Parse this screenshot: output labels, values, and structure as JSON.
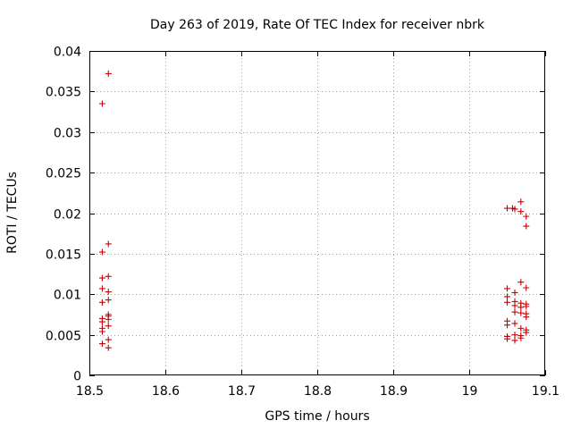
{
  "chart_data": {
    "type": "scatter",
    "title": "Day 263 of 2019, Rate Of TEC Index for receiver nbrk",
    "xlabel": "GPS time / hours",
    "ylabel": "ROTI / TECUs",
    "xlim": [
      18.5,
      19.1
    ],
    "ylim": [
      0,
      0.04
    ],
    "grid": true,
    "x_ticks": [
      18.5,
      18.6,
      18.7,
      18.8,
      18.9,
      19.0,
      19.1
    ],
    "x_tick_labels": [
      "18.5",
      "18.6",
      "18.7",
      "18.8",
      "18.9",
      "19",
      "19.1"
    ],
    "y_ticks": [
      0,
      0.005,
      0.01,
      0.015,
      0.02,
      0.025,
      0.03,
      0.035,
      0.04
    ],
    "y_tick_labels": [
      "0",
      "0.005",
      "0.01",
      "0.015",
      "0.02",
      "0.025",
      "0.03",
      "0.035",
      "0.04"
    ],
    "marker": "plus",
    "color": "#cc0000",
    "series": [
      {
        "name": "ROTI",
        "points": [
          [
            18.525,
            0.0372
          ],
          [
            18.517,
            0.0335
          ],
          [
            18.525,
            0.0162
          ],
          [
            18.517,
            0.0152
          ],
          [
            18.525,
            0.0122
          ],
          [
            18.517,
            0.012
          ],
          [
            18.517,
            0.0107
          ],
          [
            18.525,
            0.0103
          ],
          [
            18.525,
            0.0093
          ],
          [
            18.517,
            0.009
          ],
          [
            18.525,
            0.0075
          ],
          [
            18.525,
            0.0073
          ],
          [
            18.517,
            0.007
          ],
          [
            18.525,
            0.0069
          ],
          [
            18.517,
            0.0066
          ],
          [
            18.525,
            0.0061
          ],
          [
            18.517,
            0.0058
          ],
          [
            18.517,
            0.0054
          ],
          [
            18.525,
            0.0044
          ],
          [
            18.517,
            0.0039
          ],
          [
            18.525,
            0.0034
          ],
          [
            19.05,
            0.0206
          ],
          [
            19.057,
            0.0206
          ],
          [
            19.06,
            0.0205
          ],
          [
            19.068,
            0.0214
          ],
          [
            19.068,
            0.0202
          ],
          [
            19.075,
            0.0196
          ],
          [
            19.075,
            0.0184
          ],
          [
            19.068,
            0.0115
          ],
          [
            19.05,
            0.0107
          ],
          [
            19.075,
            0.0108
          ],
          [
            19.06,
            0.0102
          ],
          [
            19.05,
            0.0097
          ],
          [
            19.05,
            0.009
          ],
          [
            19.06,
            0.0091
          ],
          [
            19.068,
            0.0089
          ],
          [
            19.075,
            0.0088
          ],
          [
            19.06,
            0.0086
          ],
          [
            19.068,
            0.0084
          ],
          [
            19.075,
            0.0085
          ],
          [
            19.06,
            0.0078
          ],
          [
            19.068,
            0.0077
          ],
          [
            19.075,
            0.0076
          ],
          [
            19.075,
            0.0072
          ],
          [
            19.05,
            0.0067
          ],
          [
            19.06,
            0.0064
          ],
          [
            19.05,
            0.0062
          ],
          [
            19.068,
            0.0058
          ],
          [
            19.075,
            0.0056
          ],
          [
            19.075,
            0.0053
          ],
          [
            19.06,
            0.005
          ],
          [
            19.068,
            0.0049
          ],
          [
            19.05,
            0.0048
          ],
          [
            19.05,
            0.0045
          ],
          [
            19.068,
            0.0046
          ],
          [
            19.06,
            0.0043
          ]
        ]
      }
    ]
  }
}
